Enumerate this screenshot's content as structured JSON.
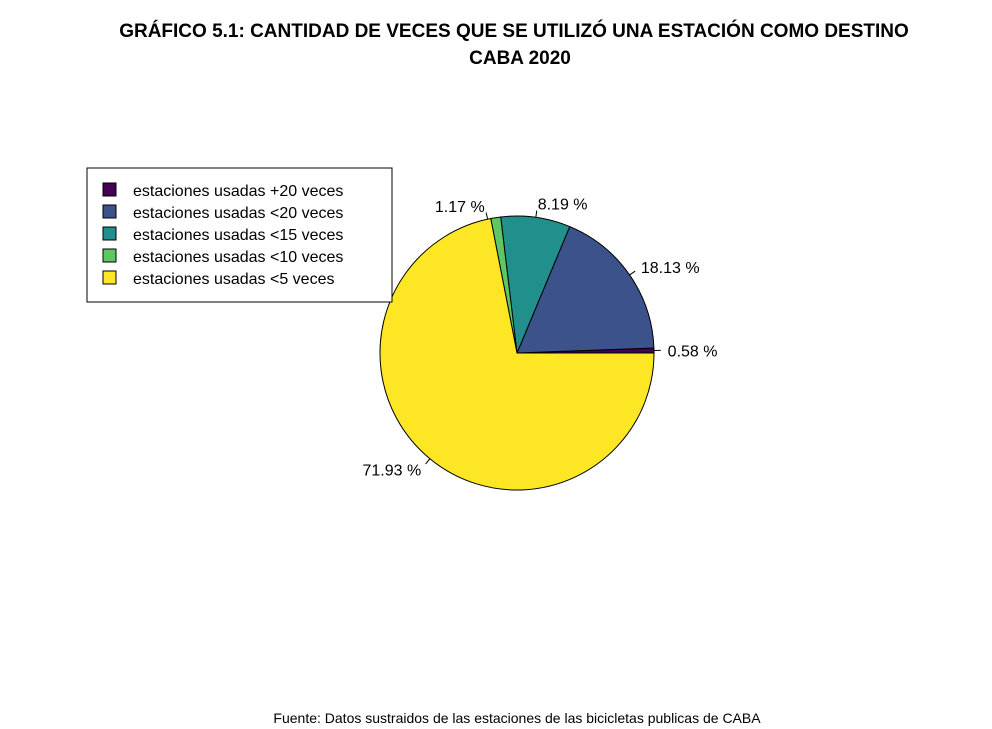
{
  "chart_data": {
    "type": "pie",
    "title_line1": "GRÁFICO 5.1: CANTIDAD DE VECES QUE SE UTILIZÓ UNA ESTACIÓN COMO DESTINO",
    "title_line2": "CABA 2020",
    "source": "Fuente: Datos sustraidos de las estaciones de las bicicletas publicas de CABA",
    "legend_position": "top-left",
    "start_angle_deg": 0,
    "direction": "counterclockwise",
    "slices": [
      {
        "name": "estaciones usadas +20 veces",
        "value": 0.58,
        "label": "0.58 %",
        "color": "#440154"
      },
      {
        "name": "estaciones usadas <20 veces",
        "value": 18.13,
        "label": "18.13 %",
        "color": "#3B528B"
      },
      {
        "name": "estaciones usadas <15 veces",
        "value": 8.19,
        "label": "8.19 %",
        "color": "#21908C"
      },
      {
        "name": "estaciones usadas <10 veces",
        "value": 1.17,
        "label": "1.17 %",
        "color": "#5DC863"
      },
      {
        "name": "estaciones usadas <5 veces",
        "value": 71.93,
        "label": "71.93 %",
        "color": "#FDE725"
      }
    ]
  }
}
